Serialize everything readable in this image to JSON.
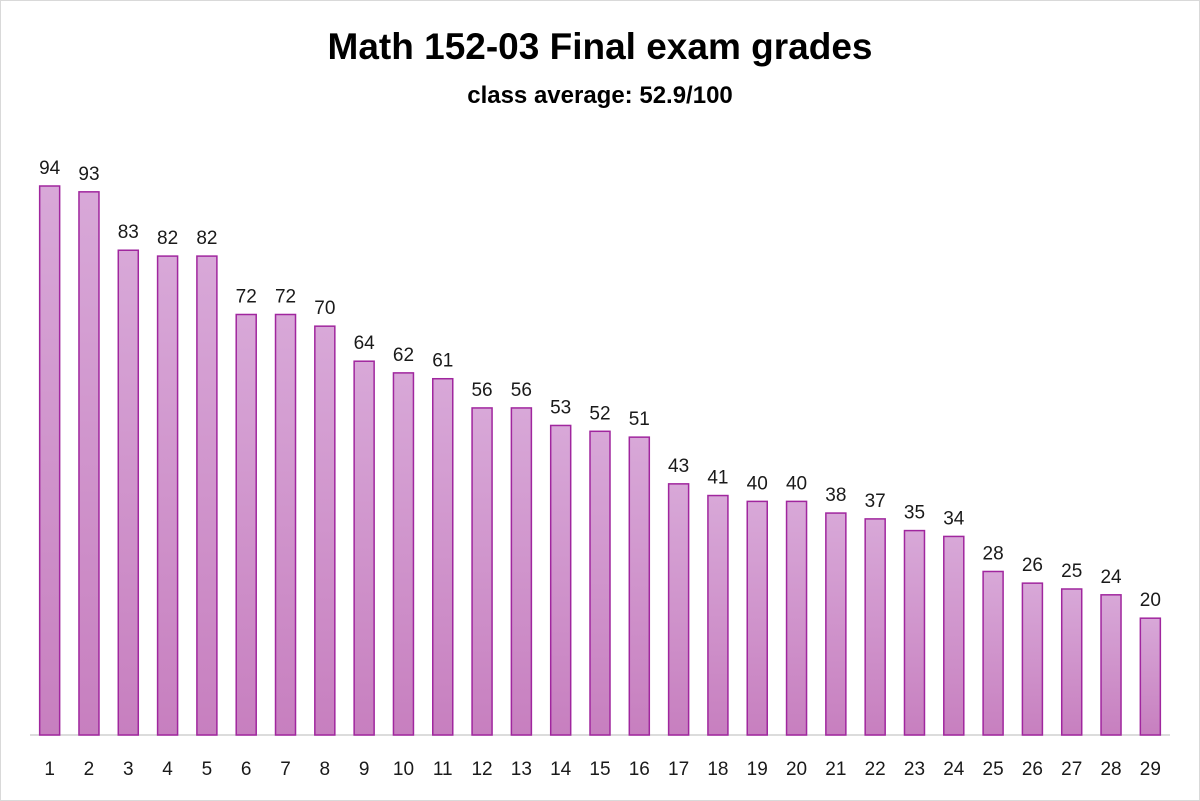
{
  "chart_data": {
    "type": "bar",
    "title": "Math 152-03 Final exam grades",
    "subtitle": "class average: 52.9/100",
    "xlabel": "",
    "ylabel": "",
    "categories": [
      "1",
      "2",
      "3",
      "4",
      "5",
      "6",
      "7",
      "8",
      "9",
      "10",
      "11",
      "12",
      "13",
      "14",
      "15",
      "16",
      "17",
      "18",
      "19",
      "20",
      "21",
      "22",
      "23",
      "24",
      "25",
      "26",
      "27",
      "28",
      "29"
    ],
    "values": [
      94,
      93,
      83,
      82,
      82,
      72,
      72,
      70,
      64,
      62,
      61,
      56,
      56,
      53,
      52,
      51,
      43,
      41,
      40,
      40,
      38,
      37,
      35,
      34,
      28,
      26,
      25,
      24,
      20
    ],
    "ylim": [
      0,
      94
    ],
    "grid": false,
    "legend": "none",
    "data_labels": true,
    "colors": {
      "bar_fill_top": "#d8a8d8",
      "bar_fill_bottom": "#c77fbf",
      "bar_stroke": "#a0269e",
      "axis": "#d0d0d0"
    }
  }
}
